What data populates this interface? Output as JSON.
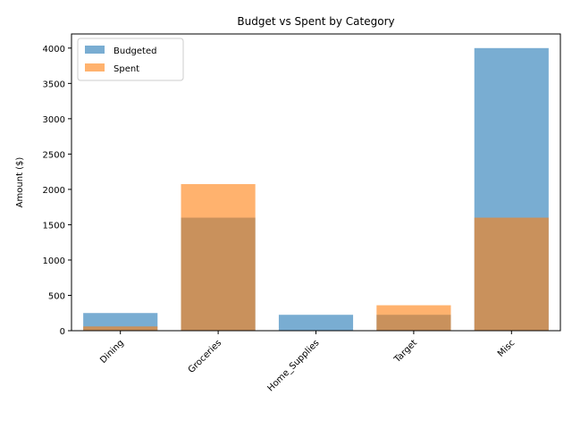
{
  "chart_data": {
    "type": "bar",
    "title": "Budget vs Spent by Category",
    "xlabel": "",
    "ylabel": "Amount ($)",
    "categories": [
      "Dining",
      "Groceries",
      "Home_Supplies",
      "Target",
      "Misc"
    ],
    "series": [
      {
        "name": "Budgeted",
        "values": [
          250,
          1600,
          225,
          225,
          4000
        ],
        "color": "#1f77b4",
        "opacity": 0.6
      },
      {
        "name": "Spent",
        "values": [
          60,
          2075,
          0,
          360,
          1600
        ],
        "color": "#ff7f0e",
        "opacity": 0.6
      }
    ],
    "ylim": [
      0,
      4200
    ],
    "yticks": [
      0,
      500,
      1000,
      1500,
      2000,
      2500,
      3000,
      3500,
      4000
    ],
    "bar_mode": "overlay",
    "grid": false,
    "legend_position": "top-left",
    "xtick_rotation": 45
  }
}
